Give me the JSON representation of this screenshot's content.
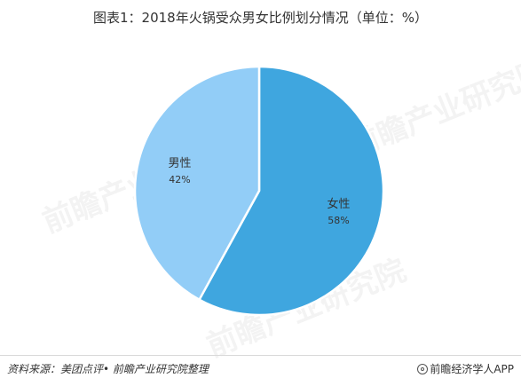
{
  "title": "图表1：2018年火锅受众男女比例划分情况（单位：%）",
  "watermark_text": "前瞻产业研究院",
  "footer": {
    "source": "资料来源：美团点评• 前瞻产业研究院整理",
    "credit": "前瞻经济学人APP"
  },
  "chart_data": {
    "type": "pie",
    "categories": [
      "女性",
      "男性"
    ],
    "values": [
      58,
      42
    ],
    "labels": [
      "58%",
      "42%"
    ],
    "colors": [
      "#3fa6df",
      "#92cdf7"
    ],
    "start": "12 o'clock",
    "direction": "clockwise"
  }
}
